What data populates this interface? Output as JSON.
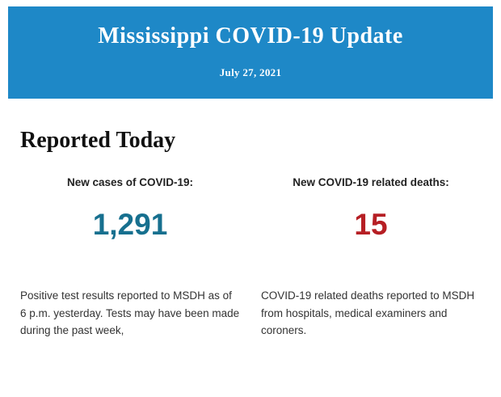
{
  "header": {
    "title": "Mississippi COVID-19 Update",
    "date": "July 27, 2021",
    "background_color": "#1e88c7"
  },
  "main": {
    "section_title": "Reported Today",
    "stats": [
      {
        "label": "New cases of COVID-19:",
        "value": "1,291",
        "value_color": "#17708f",
        "description": "Positive test results reported to MSDH as of 6 p.m. yesterday. Tests may have been made during the past week,"
      },
      {
        "label": "New COVID-19 related deaths:",
        "value": "15",
        "value_color": "#b61f24",
        "description": "COVID-19 related deaths reported to MSDH from hospitals, medical examiners and coroners."
      }
    ]
  }
}
